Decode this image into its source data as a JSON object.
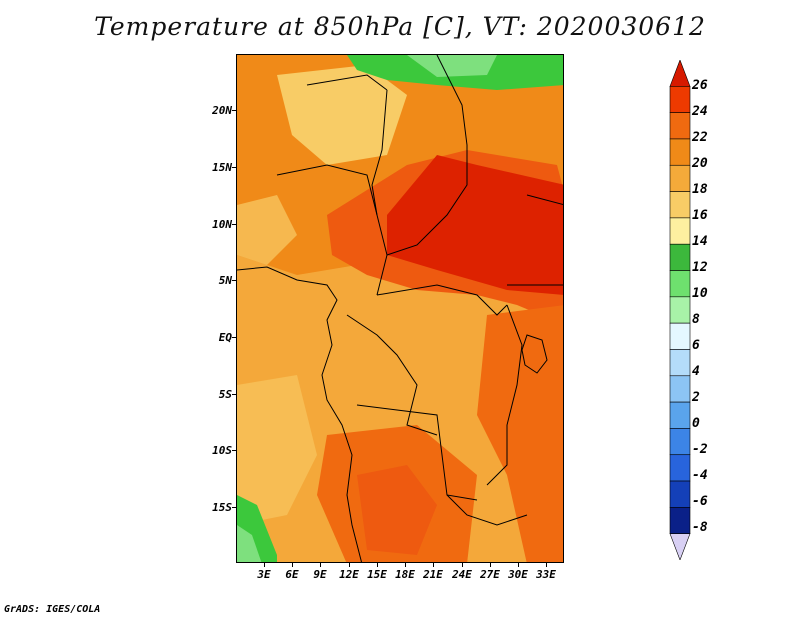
{
  "title": "Temperature at 850hPa [C], VT: 2020030612",
  "credit": "GrADS: IGES/COLA",
  "lat_labels": [
    "20N",
    "15N",
    "10N",
    "5N",
    "EQ",
    "5S",
    "10S",
    "15S"
  ],
  "lon_labels": [
    "3E",
    "6E",
    "9E",
    "12E",
    "15E",
    "18E",
    "21E",
    "24E",
    "27E",
    "30E",
    "33E"
  ],
  "colorbar": {
    "labels": [
      "26",
      "24",
      "22",
      "20",
      "18",
      "16",
      "14",
      "12",
      "10",
      "8",
      "6",
      "4",
      "2",
      "0",
      "-2",
      "-4",
      "-6",
      "-8"
    ],
    "colors": [
      "#d61a00",
      "#ee3a00",
      "#f06a10",
      "#f08a18",
      "#f4aa3a",
      "#f8cc66",
      "#fdf0a0",
      "#3cb83c",
      "#6ee06e",
      "#a8f2a8",
      "#e4f8ff",
      "#b4dcfa",
      "#8cc4f4",
      "#5aa4ec",
      "#3c84e6",
      "#2864dc",
      "#1440b8",
      "#0a2088",
      "#d8d0f4"
    ]
  },
  "map_colors": {
    "base": "#f4a83a",
    "warm": "#f08a18",
    "hot": "#ee5a10",
    "hottest": "#dd2200",
    "cool_yellow": "#f8cc66",
    "green": "#3cc83c",
    "light_green": "#7ee07e"
  }
}
